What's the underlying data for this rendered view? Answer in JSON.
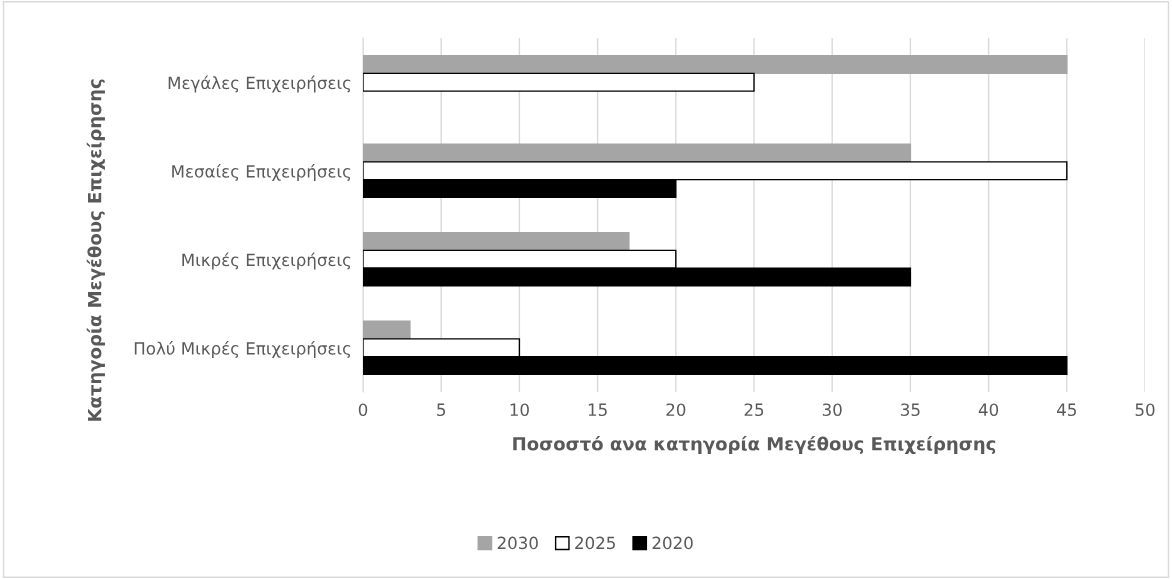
{
  "chart_data": {
    "type": "bar",
    "orientation": "horizontal",
    "categories": [
      "Μεγάλες Επιχειρήσεις",
      "Μεσαίες Επιχειρήσεις",
      "Μικρές Επιχειρήσεις",
      "Πολύ Μικρές Επιχειρήσεις"
    ],
    "series": [
      {
        "name": "2030",
        "color": "#a5a5a5",
        "values": [
          45,
          35,
          17,
          3
        ]
      },
      {
        "name": "2025",
        "color": "#ffffff",
        "values": [
          25,
          45,
          20,
          10
        ]
      },
      {
        "name": "2020",
        "color": "#000000",
        "values": [
          null,
          20,
          35,
          45
        ]
      }
    ],
    "xlabel": "Ποσοστό ανα κατηγορία Μεγέθους Επιχείρησης",
    "ylabel": "Κατηγορία Μεγέθους Επιχείρησης",
    "xlim": [
      0,
      50
    ],
    "xticks": [
      0,
      5,
      10,
      15,
      20,
      25,
      30,
      35,
      40,
      45,
      50
    ],
    "grid": "x",
    "legend": "bottom"
  }
}
